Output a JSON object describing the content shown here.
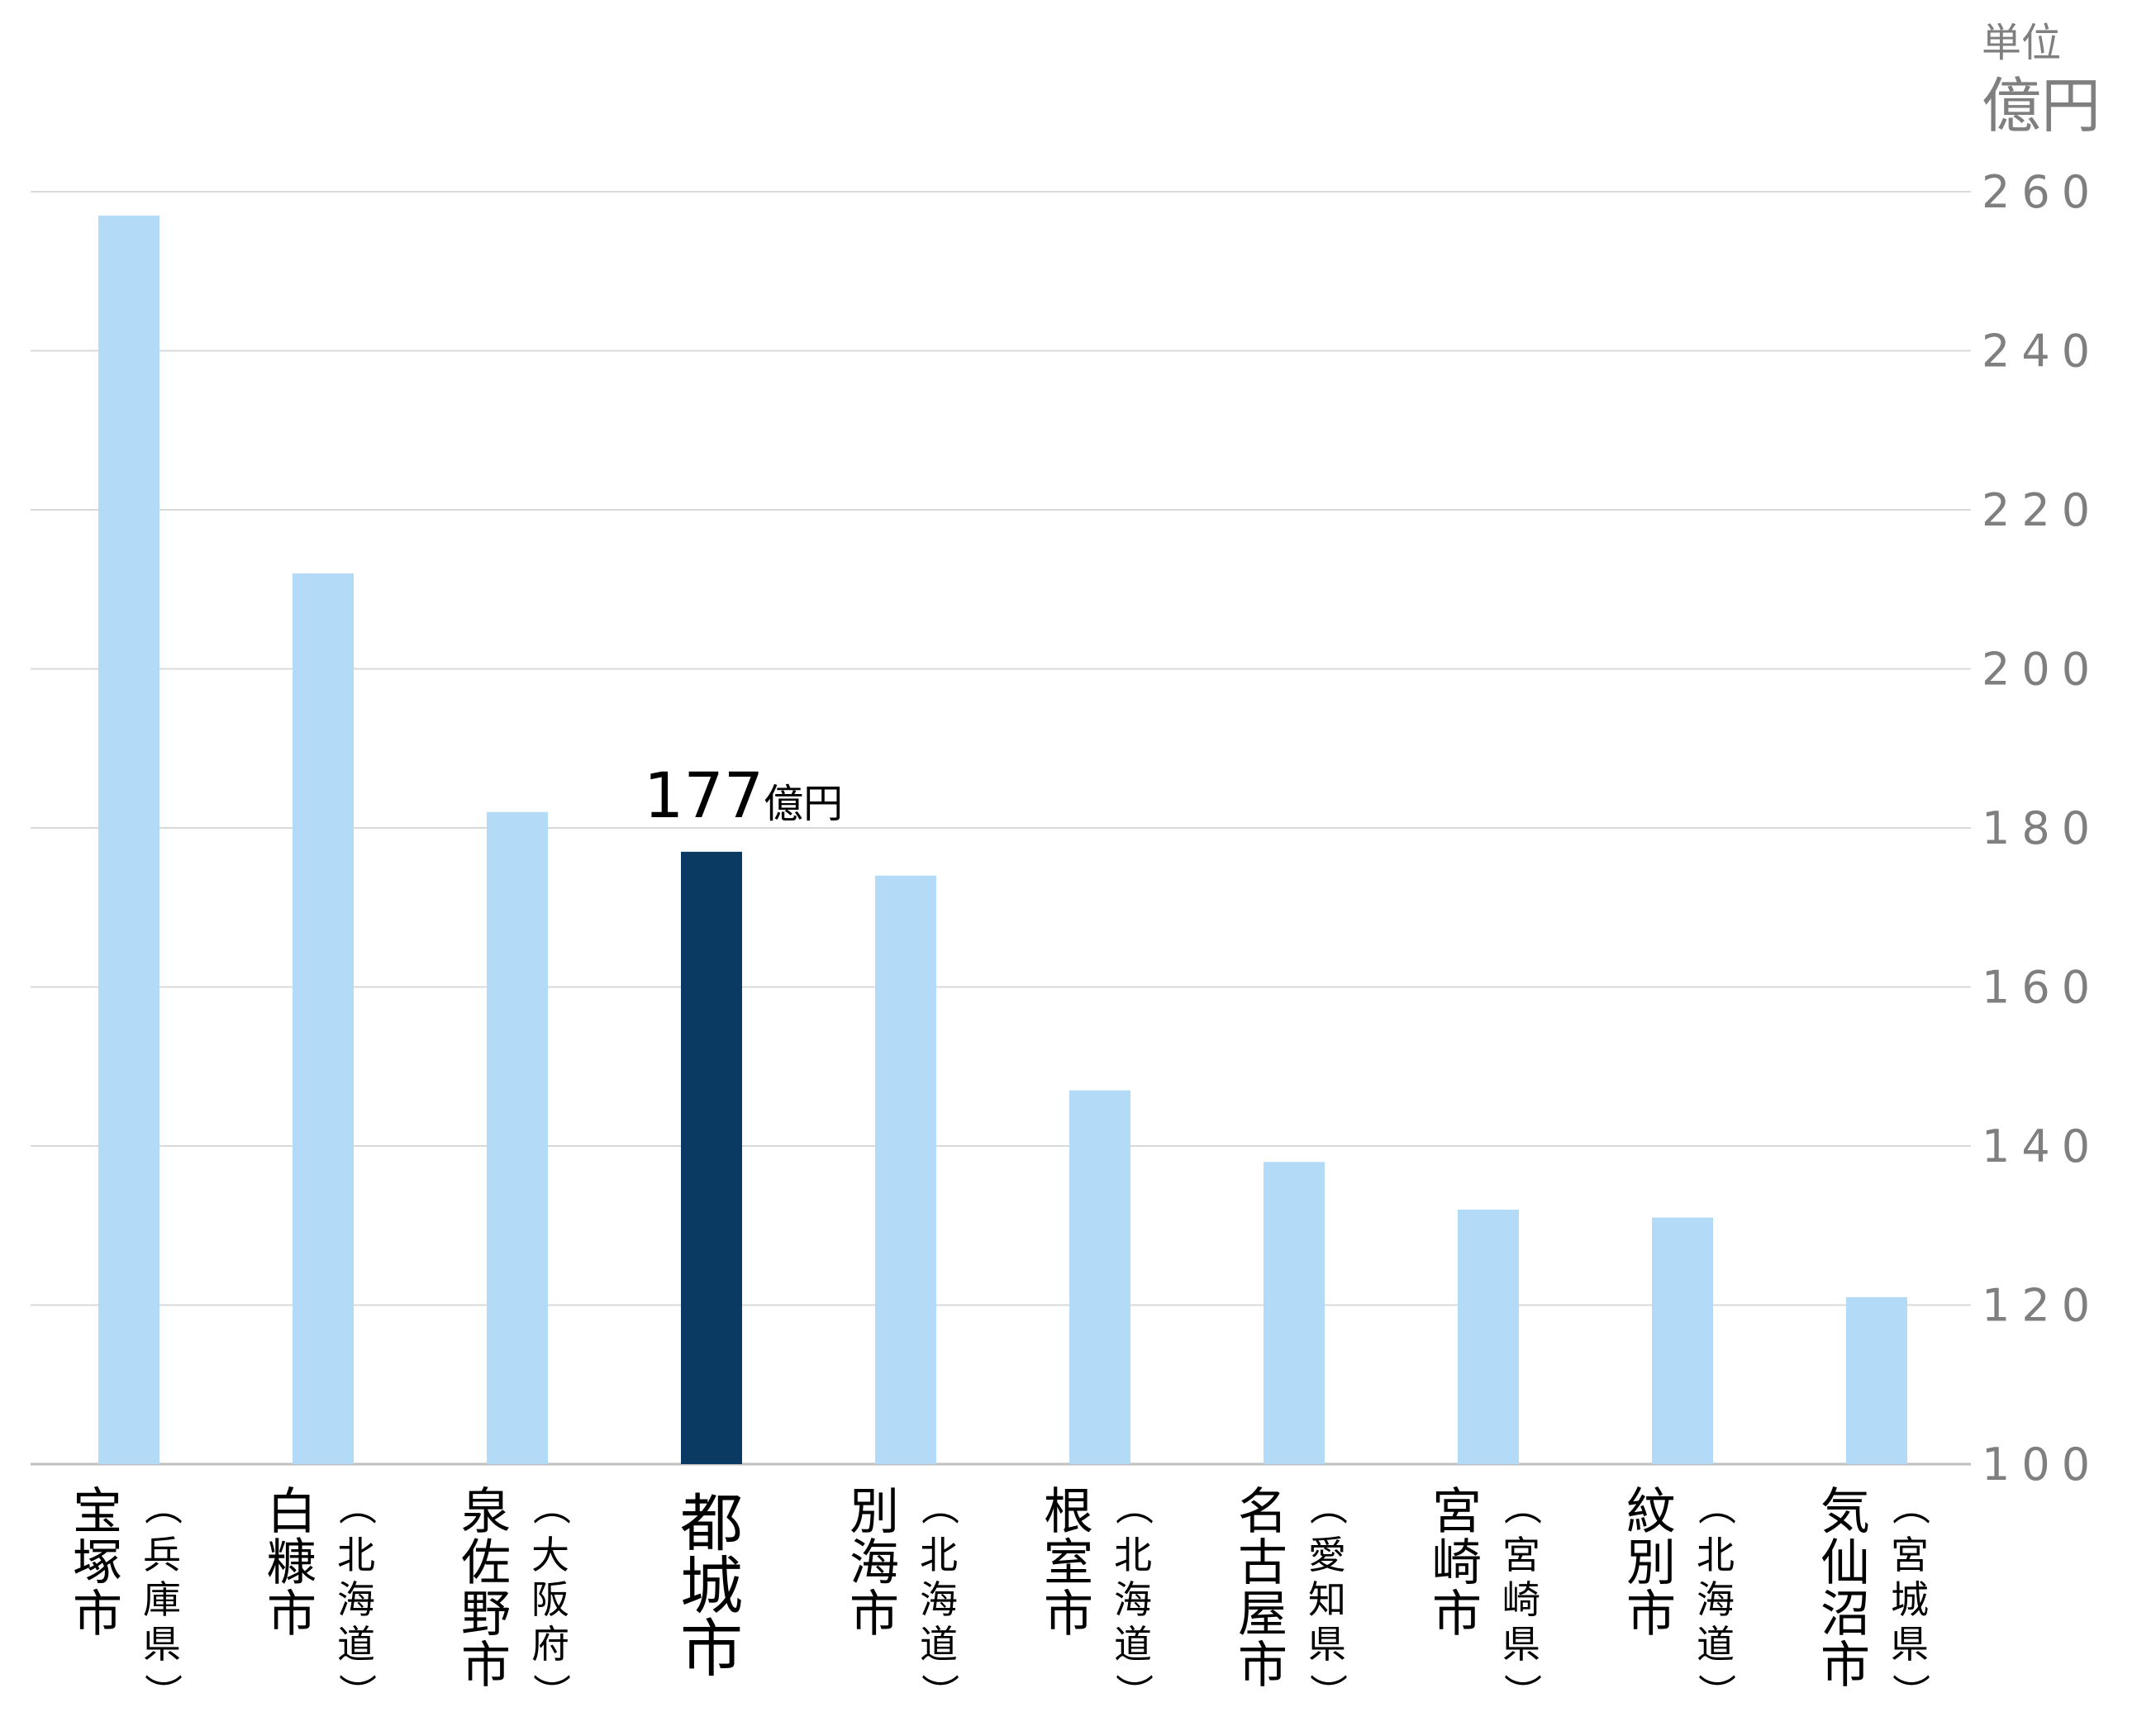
{
  "chart_data": {
    "type": "bar",
    "unit_label": "単位",
    "unit": "億円",
    "ylim": [
      100,
      260
    ],
    "yticks": [
      100,
      120,
      140,
      160,
      180,
      200,
      220,
      240,
      260
    ],
    "grid": true,
    "y_axis_side": "right",
    "categories": [
      {
        "city": "宝塚市",
        "pref": "兵庫県"
      },
      {
        "city": "白糠市",
        "pref": "北海道"
      },
      {
        "city": "泉佐野市",
        "pref": "大阪府"
      },
      {
        "city": "都城市",
        "pref": ""
      },
      {
        "city": "別海市",
        "pref": "北海道"
      },
      {
        "city": "根室市",
        "pref": "北海道"
      },
      {
        "city": "名古屋市",
        "pref": "愛知県"
      },
      {
        "city": "宮崎市",
        "pref": "宮崎県"
      },
      {
        "city": "紋別市",
        "pref": "北海道"
      },
      {
        "city": "気仙沼市",
        "pref": "宮城県"
      }
    ],
    "values": [
      257,
      212,
      182,
      177,
      174,
      147,
      138,
      132,
      131,
      121
    ],
    "highlight_index": 3,
    "annotation": {
      "value": "177",
      "unit": "億円"
    },
    "colors": {
      "bar": "#b3dbf8",
      "highlight": "#0a3a62",
      "grid": "#d9d9d9",
      "axis": "#bfbfbf"
    }
  }
}
